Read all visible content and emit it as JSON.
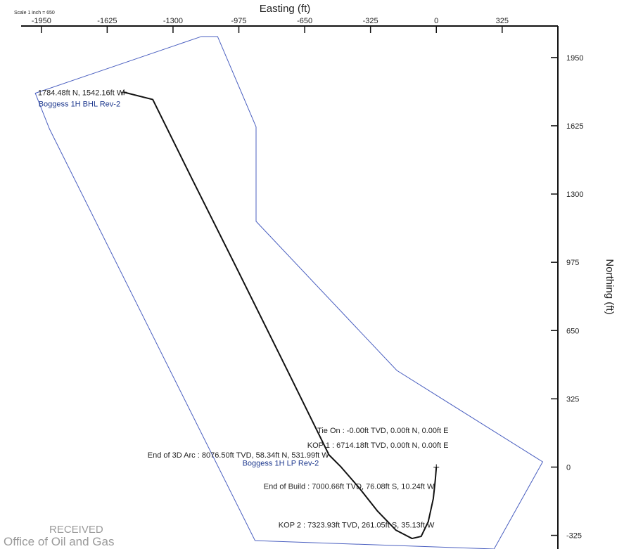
{
  "scale_note": "Scale 1 inch = 650",
  "stamp": {
    "line1": "RECEIVED",
    "line2": "Office of Oil and Gas"
  },
  "chart_data": {
    "type": "line",
    "xlabel": "Easting (ft)",
    "ylabel": "Northing (ft)",
    "xlim": [
      -2050,
      600
    ],
    "ylim": [
      -390,
      2100
    ],
    "x_ticks": [
      -1950,
      -1625,
      -1300,
      -975,
      -650,
      -325,
      0,
      325
    ],
    "y_ticks": [
      1950,
      1625,
      1300,
      975,
      650,
      325,
      0,
      -325
    ],
    "series": [
      {
        "name": "Boggess 1H",
        "color": "#111111",
        "points": [
          [
            0,
            0
          ],
          [
            -5,
            -60
          ],
          [
            -15,
            -150
          ],
          [
            -40,
            -260
          ],
          [
            -75,
            -330
          ],
          [
            -120,
            -340
          ],
          [
            -200,
            -300
          ],
          [
            -290,
            -210
          ],
          [
            -380,
            -100
          ],
          [
            -470,
            0
          ],
          [
            -530,
            58
          ],
          [
            -730,
            450
          ],
          [
            -1000,
            975
          ],
          [
            -1200,
            1360
          ],
          [
            -1400,
            1750
          ],
          [
            -1542.16,
            1784.48
          ]
        ]
      }
    ],
    "boundary": {
      "color": "#4a5fc0",
      "points": [
        [
          -1160,
          2050
        ],
        [
          -1080,
          2050
        ],
        [
          -890,
          1620
        ],
        [
          -890,
          1170
        ],
        [
          -195,
          460
        ],
        [
          525,
          25
        ],
        [
          285,
          -390
        ],
        [
          -895,
          -350
        ],
        [
          -1910,
          1610
        ],
        [
          -1980,
          1780
        ]
      ]
    },
    "annotations": [
      {
        "text": "1784.48ft N, 1542.16ft W",
        "x": -1542.16,
        "y": 1784.48,
        "anchor": "end"
      },
      {
        "text": "Boggess 1H BHL Rev-2",
        "x": -1560,
        "y": 1730,
        "anchor": "end",
        "color": "#1f3a8f"
      },
      {
        "text": "Tie On : -0.00ft TVD, 0.00ft N, 0.00ft E",
        "x": 60,
        "y": 175,
        "anchor": "end"
      },
      {
        "text": "KOP 1 : 6714.18ft TVD, 0.00ft N, 0.00ft E",
        "x": 60,
        "y": 105,
        "anchor": "end"
      },
      {
        "text": "End of 3D Arc : 8076.50ft TVD, 58.34ft N, 531.99ft W",
        "x": -530,
        "y": 58,
        "anchor": "end"
      },
      {
        "text": "Boggess 1H LP Rev-2",
        "x": -580,
        "y": 20,
        "anchor": "end",
        "color": "#1f3a8f"
      },
      {
        "text": "End of Build : 7000.66ft TVD, 76.08ft S, 10.24ft W",
        "x": -10,
        "y": -90,
        "anchor": "end"
      },
      {
        "text": "KOP 2 : 7323.93ft TVD, 261.05ft S, 35.13ft W",
        "x": -10,
        "y": -275,
        "anchor": "end"
      }
    ]
  }
}
